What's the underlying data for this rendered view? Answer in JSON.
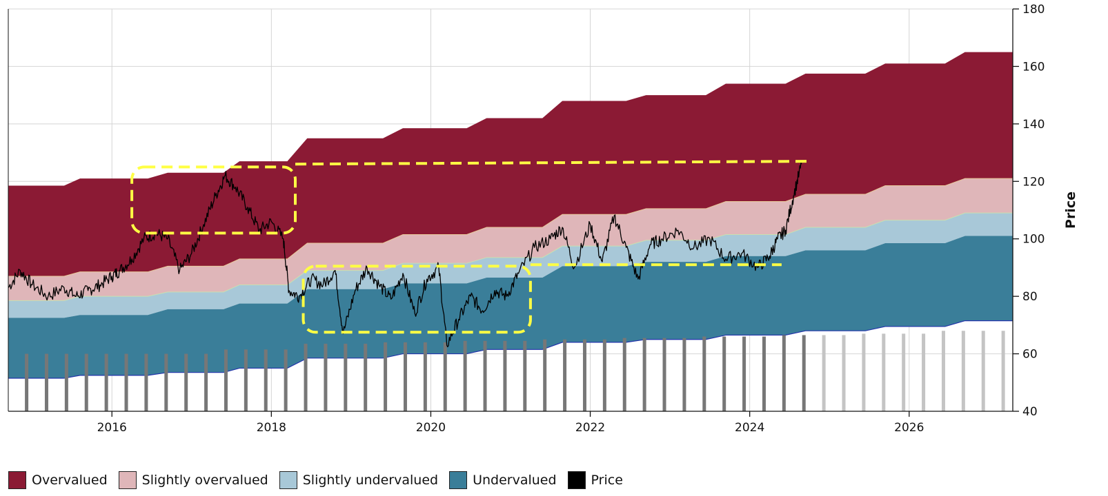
{
  "chart_data": {
    "type": "area",
    "title": "",
    "xlabel": "",
    "ylabel": "Price",
    "xlim": [
      2014.7,
      2027.3
    ],
    "ylim": [
      40,
      180
    ],
    "x_ticks": [
      2016,
      2018,
      2020,
      2022,
      2024,
      2026
    ],
    "x_tick_labels": [
      "2016",
      "2018",
      "2020",
      "2022",
      "2024",
      "2026"
    ],
    "y_ticks": [
      40,
      60,
      80,
      100,
      120,
      140,
      160,
      180
    ],
    "y_tick_labels": [
      "40",
      "60",
      "80",
      "100",
      "120",
      "140",
      "160",
      "180"
    ],
    "grid": true,
    "legend_position": "bottom-left",
    "bands_x": [
      2014.7,
      2015.4,
      2015.6,
      2016.45,
      2016.7,
      2017.4,
      2017.6,
      2018.2,
      2018.45,
      2019.4,
      2019.65,
      2020.45,
      2020.7,
      2021.4,
      2021.65,
      2022.45,
      2022.7,
      2023.45,
      2023.7,
      2024.45,
      2024.7,
      2025.45,
      2025.7,
      2026.45,
      2026.7,
      2027.3
    ],
    "bands": {
      "base": [
        51.5,
        51.5,
        52.5,
        52.5,
        53.5,
        53.5,
        55,
        55,
        58.5,
        58.5,
        60,
        60,
        61.5,
        61.5,
        64,
        64,
        65,
        65,
        66.5,
        66.5,
        68,
        68,
        69.5,
        69.5,
        71.5,
        71.5
      ],
      "undervalued_top": [
        72.5,
        72.5,
        73.5,
        73.5,
        75.5,
        75.5,
        77.5,
        77.5,
        82.5,
        82.5,
        84.5,
        84.5,
        86.5,
        86.5,
        90.5,
        90.5,
        92,
        92,
        94,
        94,
        96,
        96,
        98.5,
        98.5,
        101,
        101
      ],
      "slightly_undervalued_top": [
        78.5,
        78.5,
        80,
        80,
        81.5,
        81.5,
        84,
        84,
        89,
        89,
        91.5,
        91.5,
        93.5,
        93.5,
        97.5,
        97.5,
        99.5,
        99.5,
        101.5,
        101.5,
        104,
        104,
        106.5,
        106.5,
        109,
        109
      ],
      "slightly_overvalued_top": [
        87,
        87,
        88.5,
        88.5,
        90.5,
        90.5,
        93,
        93,
        98.5,
        98.5,
        101.5,
        101.5,
        104,
        104,
        108.5,
        108.5,
        110.5,
        110.5,
        113,
        113,
        115.5,
        115.5,
        118.5,
        118.5,
        121,
        121
      ],
      "overvalued_top": [
        118.5,
        118.5,
        121,
        121,
        123,
        123,
        127,
        127,
        135,
        135,
        138.5,
        138.5,
        142,
        142,
        148,
        148,
        150,
        150,
        154,
        154,
        157.5,
        157.5,
        161,
        161,
        165,
        165
      ]
    },
    "price": {
      "x": [
        2014.7,
        2014.85,
        2015.0,
        2015.2,
        2015.4,
        2015.55,
        2015.7,
        2015.85,
        2016.0,
        2016.1,
        2016.25,
        2016.4,
        2016.55,
        2016.7,
        2016.85,
        2017.0,
        2017.15,
        2017.3,
        2017.42,
        2017.55,
        2017.7,
        2017.85,
        2018.0,
        2018.15,
        2018.22,
        2018.35,
        2018.5,
        2018.65,
        2018.8,
        2018.9,
        2019.05,
        2019.2,
        2019.35,
        2019.5,
        2019.65,
        2019.8,
        2019.95,
        2020.1,
        2020.2,
        2020.35,
        2020.5,
        2020.65,
        2020.8,
        2020.95,
        2021.1,
        2021.3,
        2021.5,
        2021.65,
        2021.8,
        2022.0,
        2022.15,
        2022.3,
        2022.45,
        2022.6,
        2022.75,
        2022.9,
        2023.1,
        2023.3,
        2023.5,
        2023.7,
        2023.9,
        2024.1,
        2024.25,
        2024.35,
        2024.45,
        2024.55,
        2024.65
      ],
      "y": [
        83,
        89,
        84,
        80,
        83,
        80,
        82,
        84,
        87,
        89,
        93,
        100,
        102,
        100,
        89,
        95,
        105,
        115,
        122,
        118,
        111,
        103,
        106,
        100,
        82,
        80,
        86,
        84,
        89,
        67,
        82,
        90,
        84,
        79,
        88,
        74,
        86,
        90,
        63,
        72,
        80,
        75,
        82,
        80,
        88,
        97,
        100,
        104,
        90,
        105,
        92,
        108,
        97,
        86,
        98,
        100,
        103,
        97,
        100,
        93,
        95,
        90,
        94,
        100,
        103,
        115,
        126
      ]
    },
    "volume_bars": {
      "x": [
        2014.93,
        2015.18,
        2015.43,
        2015.68,
        2015.93,
        2016.18,
        2016.43,
        2016.68,
        2016.93,
        2017.18,
        2017.43,
        2017.68,
        2017.93,
        2018.18,
        2018.43,
        2018.68,
        2018.93,
        2019.18,
        2019.43,
        2019.68,
        2019.93,
        2020.18,
        2020.43,
        2020.68,
        2020.93,
        2021.18,
        2021.43,
        2021.68,
        2021.93,
        2022.18,
        2022.43,
        2022.68,
        2022.93,
        2023.18,
        2023.43,
        2023.68,
        2023.93,
        2024.18,
        2024.43,
        2024.68,
        2024.93,
        2025.18,
        2025.43,
        2025.68,
        2025.93,
        2026.18,
        2026.43,
        2026.68,
        2026.93,
        2027.18
      ],
      "top": [
        60,
        60,
        60,
        60,
        60,
        60,
        60,
        60,
        60,
        60,
        61.5,
        61.5,
        61.5,
        61.5,
        63.5,
        63.5,
        63.5,
        63.5,
        64,
        64,
        64,
        64,
        64.5,
        64.5,
        64.5,
        64.5,
        65,
        65,
        65,
        65,
        65.5,
        65.5,
        65.5,
        65.5,
        66,
        66,
        66,
        66,
        66.5,
        66.5,
        66.5,
        66.5,
        67,
        67,
        67,
        67,
        68,
        68,
        68,
        68
      ],
      "projected_from_index": 40
    },
    "annotations": [
      {
        "type": "dashed-box",
        "x0": 2016.25,
        "x1": 2018.3,
        "y0": 102,
        "y1": 125
      },
      {
        "type": "dashed-box",
        "x0": 2018.4,
        "x1": 2021.25,
        "y0": 67.5,
        "y1": 90.5
      },
      {
        "type": "dashed-line",
        "x0": 2018.3,
        "x1": 2024.75,
        "y0": 126,
        "y1": 127
      },
      {
        "type": "dashed-line",
        "x0": 2021.25,
        "x1": 2024.4,
        "y0": 91,
        "y1": 91
      }
    ],
    "legend": [
      {
        "label": "Overvalued",
        "color": "#8b1a34"
      },
      {
        "label": "Slightly overvalued",
        "color": "#dfb6b9"
      },
      {
        "label": "Slightly undervalued",
        "color": "#a8c8d8"
      },
      {
        "label": "Undervalued",
        "color": "#3a7e99"
      },
      {
        "label": "Price",
        "color": "#000000"
      }
    ],
    "colors": {
      "overvalued": "#8b1a34",
      "slightly_overvalued": "#dfb6b9",
      "slightly_undervalued": "#a8c8d8",
      "undervalued": "#3a7e99",
      "base_line": "#2233aa",
      "price": "#000000",
      "volume": "#777777",
      "volume_projected": "#c4c4c4",
      "annotation": "#ffff44",
      "grid": "#d4d4d4"
    }
  }
}
